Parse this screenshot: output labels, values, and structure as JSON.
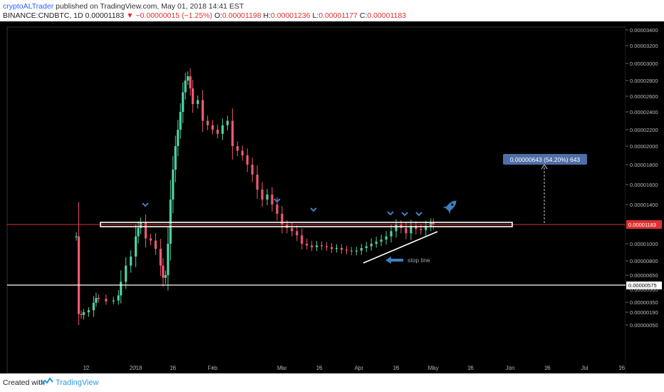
{
  "header": {
    "author": "cryptoALTrader",
    "published": " published on TradingView.com, May 01, 2018 14:41 EST",
    "symbol": "BINANCE:CNDBTC, 1D",
    "last": "0.00001183",
    "change": "▼ −0.00000015 (−1.25%)",
    "o_label": "O:",
    "o": "0.00001198",
    "h_label": "H:",
    "h": "0.00001236",
    "l_label": "L:",
    "l": "0.00001177",
    "c_label": "C:",
    "c": "0.00001183"
  },
  "footer": {
    "created": "Created with",
    "brand": "TradingView"
  },
  "colors": {
    "bg": "#000000",
    "up": "#4fd1a0",
    "down": "#ee5a6e",
    "price": "#e03030",
    "annotation_blue": "#3f7ec0",
    "measure": "#4f6fa8"
  },
  "chart_data": {
    "type": "candlestick",
    "symbol": "BINANCE:CNDBTC",
    "interval": "1D",
    "y_ticks": [
      "0.00003400",
      "0.00003200",
      "0.00003000",
      "0.00002800",
      "0.00002600",
      "0.00002400",
      "0.00002200",
      "0.00002000",
      "0.00001800",
      "0.00001600",
      "0.00001400",
      "0.00001183",
      "0.00001000",
      "0.00000800",
      "0.00000650",
      "0.00000575",
      "0.00000500",
      "0.00000350",
      "0.00000190",
      "0.00000050"
    ],
    "x_ticks": [
      "12",
      "2018",
      "16",
      "Feb",
      "Mar",
      "16",
      "Apr",
      "16",
      "May",
      "16",
      "Jun",
      "16",
      "Jul",
      "16"
    ],
    "close_path": [
      [
        "2017-12-08",
        1.07e-05
      ],
      [
        "2017-12-09",
        1.7e-06
      ],
      [
        "2017-12-10",
        1.6e-06
      ],
      [
        "2017-12-11",
        1.9e-06
      ],
      [
        "2017-12-13",
        2.2e-06
      ],
      [
        "2017-12-15",
        3.4e-06
      ],
      [
        "2017-12-16",
        4e-06
      ],
      [
        "2017-12-17",
        3.9e-06
      ],
      [
        "2017-12-20",
        3.6e-06
      ],
      [
        "2017-12-23",
        3.7e-06
      ],
      [
        "2017-12-25",
        4.3e-06
      ],
      [
        "2017-12-26",
        6e-06
      ],
      [
        "2017-12-28",
        7.5e-06
      ],
      [
        "2017-12-30",
        8.5e-06
      ],
      [
        "2018-01-01",
        1.07e-05
      ],
      [
        "2018-01-02",
        1.15e-05
      ],
      [
        "2018-01-03",
        1.2e-05
      ],
      [
        "2018-01-05",
        1.05e-05
      ],
      [
        "2018-01-07",
        1.03e-05
      ],
      [
        "2018-01-09",
        9.4e-06
      ],
      [
        "2018-01-11",
        7.5e-06
      ],
      [
        "2018-01-12",
        6.3e-06
      ],
      [
        "2018-01-13",
        6.5e-06
      ],
      [
        "2018-01-14",
        1e-05
      ],
      [
        "2018-01-15",
        1.45e-05
      ],
      [
        "2018-01-16",
        1.75e-05
      ],
      [
        "2018-01-17",
        2e-05
      ],
      [
        "2018-01-18",
        2.2e-05
      ],
      [
        "2018-01-19",
        2.4e-05
      ],
      [
        "2018-01-20",
        2.65e-05
      ],
      [
        "2018-01-21",
        2.8e-05
      ],
      [
        "2018-01-22",
        2.85e-05
      ],
      [
        "2018-01-23",
        2.7e-05
      ],
      [
        "2018-01-24",
        2.5e-05
      ],
      [
        "2018-01-26",
        2.55e-05
      ],
      [
        "2018-01-28",
        2.3e-05
      ],
      [
        "2018-01-30",
        2.25e-05
      ],
      [
        "2018-02-01",
        2.2e-05
      ],
      [
        "2018-02-03",
        2.15e-05
      ],
      [
        "2018-02-05",
        2.25e-05
      ],
      [
        "2018-02-07",
        2.3e-05
      ],
      [
        "2018-02-09",
        2e-05
      ],
      [
        "2018-02-11",
        1.95e-05
      ],
      [
        "2018-02-13",
        1.9e-05
      ],
      [
        "2018-02-15",
        1.8e-05
      ],
      [
        "2018-02-17",
        1.7e-05
      ],
      [
        "2018-02-19",
        1.55e-05
      ],
      [
        "2018-02-21",
        1.45e-05
      ],
      [
        "2018-02-23",
        1.5e-05
      ],
      [
        "2018-02-25",
        1.4e-05
      ],
      [
        "2018-02-27",
        1.3e-05
      ],
      [
        "2018-03-01",
        1.18e-05
      ],
      [
        "2018-03-03",
        1.15e-05
      ],
      [
        "2018-03-05",
        1.12e-05
      ],
      [
        "2018-03-07",
        1.08e-05
      ],
      [
        "2018-03-09",
        1e-05
      ],
      [
        "2018-03-11",
        9.8e-06
      ],
      [
        "2018-03-13",
        9.6e-06
      ],
      [
        "2018-03-15",
        9.8e-06
      ],
      [
        "2018-03-17",
        9.7e-06
      ],
      [
        "2018-03-19",
        9.6e-06
      ],
      [
        "2018-03-21",
        9.4e-06
      ],
      [
        "2018-03-23",
        9.5e-06
      ],
      [
        "2018-03-25",
        9.3e-06
      ],
      [
        "2018-03-27",
        9.2e-06
      ],
      [
        "2018-03-29",
        9.1e-06
      ],
      [
        "2018-03-31",
        9.2e-06
      ],
      [
        "2018-04-02",
        9.5e-06
      ],
      [
        "2018-04-04",
        9.7e-06
      ],
      [
        "2018-04-06",
        1e-05
      ],
      [
        "2018-04-08",
        1.02e-05
      ],
      [
        "2018-04-10",
        1.04e-05
      ],
      [
        "2018-04-12",
        1.07e-05
      ],
      [
        "2018-04-14",
        1.12e-05
      ],
      [
        "2018-04-16",
        1.18e-05
      ],
      [
        "2018-04-18",
        1.15e-05
      ],
      [
        "2018-04-20",
        1.1e-05
      ],
      [
        "2018-04-22",
        1.17e-05
      ],
      [
        "2018-04-24",
        1.14e-05
      ],
      [
        "2018-04-26",
        1.13e-05
      ],
      [
        "2018-04-28",
        1.17e-05
      ],
      [
        "2018-04-30",
        1.2e-05
      ],
      [
        "2018-05-01",
        1.18e-05
      ]
    ],
    "resistance_level": "0.00001183",
    "support_level": "0.00000575",
    "measure_label": "0.00000643 (54.20%) 643",
    "annotation": "stop line"
  }
}
